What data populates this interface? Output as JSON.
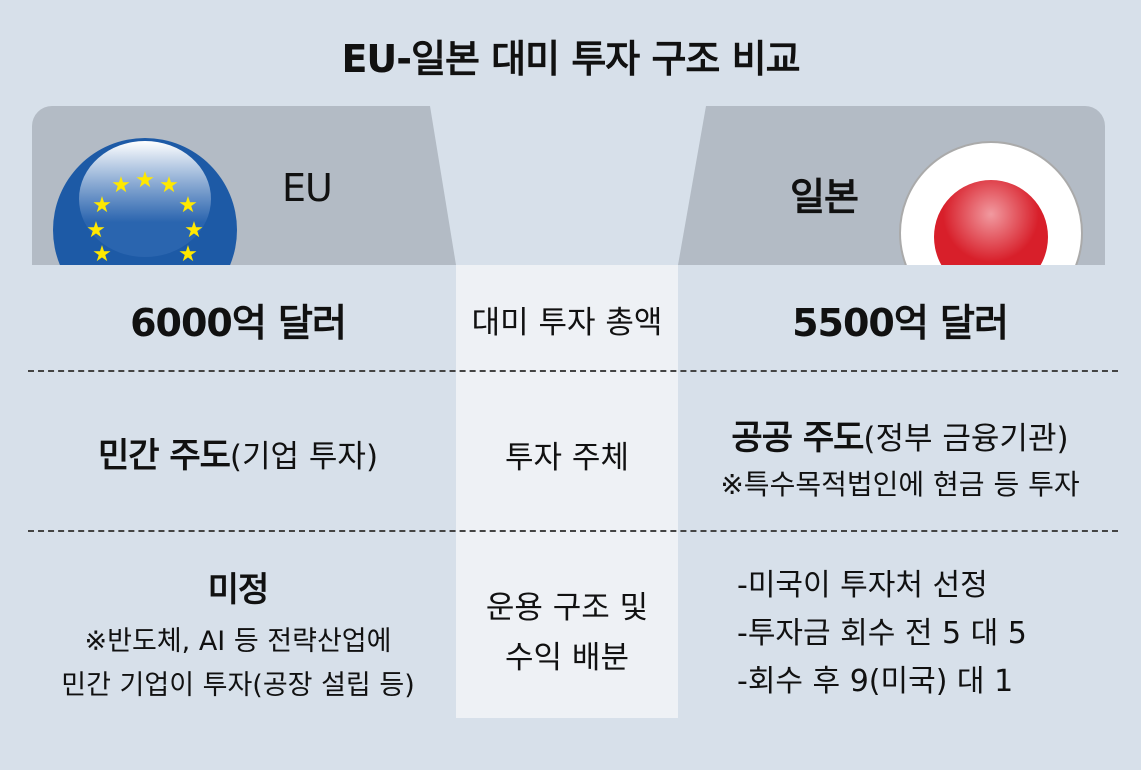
{
  "title": "EU-일본 대미 투자 구조 비교",
  "colors": {
    "background": "#d7e0ea",
    "tab": "#b3bbc5",
    "center_column": "#eef1f5",
    "eu_blue": "#1d5aa6",
    "eu_star": "#ffe800",
    "japan_red": "#d81f2a"
  },
  "eu": {
    "label": "EU",
    "amount": "6000억 달러",
    "subject_bold": "민간 주도",
    "subject_note": "(기업 투자)",
    "structure_title": "미정",
    "structure_notes": [
      "※반도체, AI 등 전략산업에",
      "민간 기업이 투자(공장 설립 등)"
    ]
  },
  "japan": {
    "label": "일본",
    "amount": "5500억 달러",
    "subject_bold": "공공 주도",
    "subject_note": "(정부 금융기관)",
    "subject_sub": "※특수목적법인에 현금 등 투자",
    "structure_items": [
      "-미국이 투자처 선정",
      "-투자금 회수 전 5 대 5",
      "-회수 후 9(미국) 대 1"
    ]
  },
  "rows": [
    "대미 투자 총액",
    "투자 주체",
    "운용 구조 및",
    "수익 배분"
  ]
}
